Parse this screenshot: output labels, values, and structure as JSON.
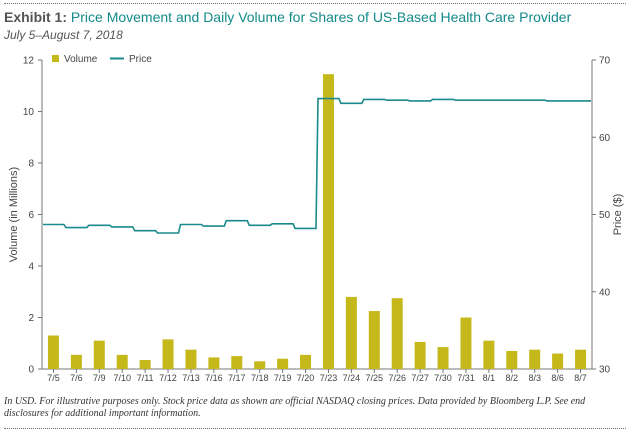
{
  "header": {
    "exhibit_label": "Exhibit 1:",
    "title": "Price Movement and Daily Volume for Shares of US-Based Health Care Provider",
    "subtitle": "July 5–August 7, 2018"
  },
  "footnote": "In USD. For illustrative purposes only. Stock price data as shown are official NASDAQ closing prices. Data provided by Bloomberg L.P. See end disclosures for additional important information.",
  "colors": {
    "volume": "#c5b81b",
    "price": "#1a8a8c",
    "axis": "#777777",
    "text": "#444444"
  },
  "chart_data": {
    "type": "bar",
    "title": "Price Movement and Daily Volume for Shares of US-Based Health Care Provider",
    "categories": [
      "7/5",
      "7/6",
      "7/9",
      "7/10",
      "7/11",
      "7/12",
      "7/13",
      "7/16",
      "7/17",
      "7/18",
      "7/19",
      "7/20",
      "7/23",
      "7/24",
      "7/25",
      "7/26",
      "7/27",
      "7/30",
      "7/31",
      "8/1",
      "8/2",
      "8/3",
      "8/6",
      "8/7"
    ],
    "series": [
      {
        "name": "Volume",
        "type": "bar",
        "axis": "left",
        "values": [
          1.3,
          0.55,
          1.1,
          0.55,
          0.35,
          1.15,
          0.75,
          0.45,
          0.5,
          0.3,
          0.4,
          0.55,
          11.45,
          2.8,
          2.25,
          2.75,
          1.05,
          0.85,
          2.0,
          1.1,
          0.7,
          0.75,
          0.6,
          0.75
        ]
      },
      {
        "name": "Price",
        "type": "step",
        "axis": "right",
        "values": [
          48.7,
          48.3,
          48.6,
          48.4,
          47.9,
          47.6,
          48.7,
          48.5,
          49.2,
          48.6,
          48.8,
          48.2,
          65.0,
          64.4,
          64.9,
          64.8,
          64.7,
          64.9,
          64.8,
          64.8,
          64.8,
          64.8,
          64.7,
          64.7
        ]
      }
    ],
    "left_axis": {
      "label": "Volume (in Millions)",
      "ylim": [
        0,
        12
      ],
      "ticks": [
        0,
        2,
        4,
        6,
        8,
        10,
        12
      ]
    },
    "right_axis": {
      "label": "Price ($)",
      "ylim": [
        30,
        70
      ],
      "ticks": [
        30,
        40,
        50,
        60,
        70
      ]
    },
    "legend": [
      "Volume",
      "Price"
    ],
    "legend_position": "top-left",
    "grid": false
  }
}
